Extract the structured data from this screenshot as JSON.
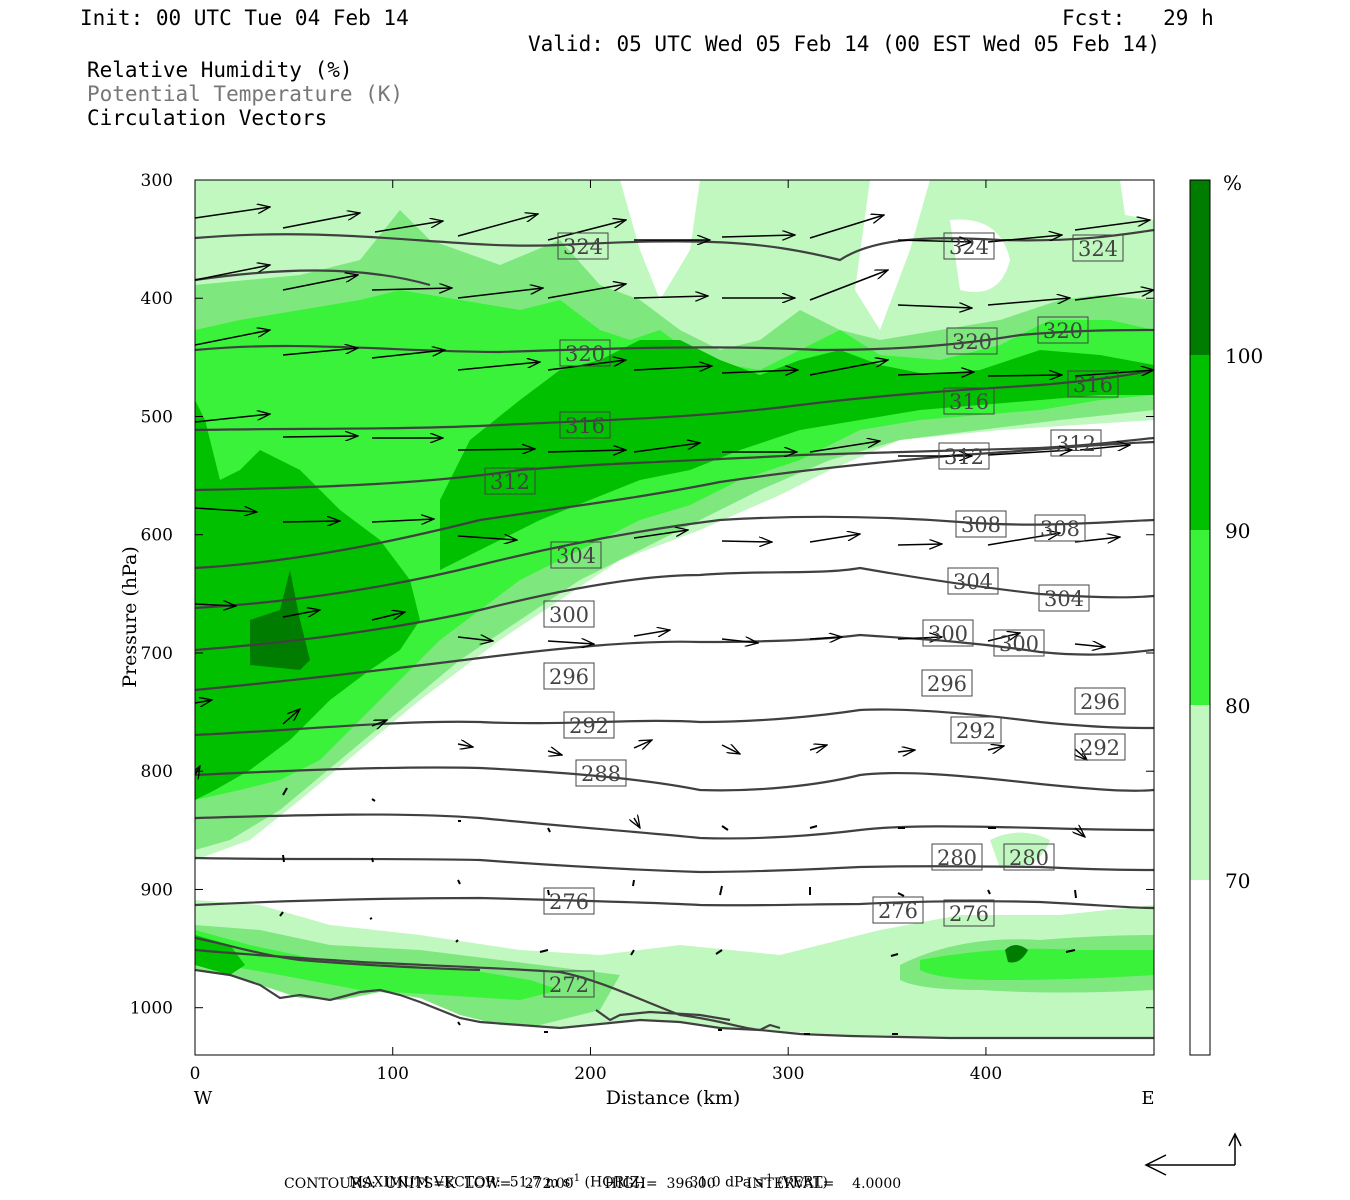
{
  "header": {
    "init": "Init: 00 UTC Tue 04 Feb 14",
    "fcst": "Fcst:   29 h",
    "valid": "Valid: 05 UTC Wed 05 Feb 14 (00 EST Wed 05 Feb 14)",
    "fields": [
      "Relative Humidity (%)",
      "Potential Temperature (K)",
      "Circulation Vectors"
    ]
  },
  "footer": {
    "max_vector_label": "MAXIMUM VECTOR:",
    "horiz": "51.7 m s",
    "horiz_sup": "-1",
    "horiz_unit": " (HORIZ)",
    "vert": "31.0 dPa s",
    "vert_sup": "-1",
    "vert_unit": " (VERT)",
    "contours": "CONTOURS:  UNITS=K  LOW=   272.00       HIGH=  396.00       INTERVAL=    4.0000"
  },
  "colors": {
    "rh_70_80": "#c0f8c0",
    "rh_80_90": "#7ee87e",
    "rh_90_100": "#39f239",
    "rh_100": "#00c000",
    "rh_max": "#007c00",
    "theta": "#404040"
  },
  "chart_data": {
    "type": "contour",
    "xlabel": "Distance (km)",
    "ylabel": "Pressure (hPa)",
    "x_ticks": [
      0,
      100,
      200,
      300,
      400
    ],
    "y_ticks": [
      300,
      400,
      500,
      600,
      700,
      800,
      900,
      1000
    ],
    "xlim": [
      0,
      485
    ],
    "ylim": [
      1040,
      300
    ],
    "x_end_labels": {
      "left": "W",
      "right": "E"
    },
    "colorbar": {
      "unit": "%",
      "levels": [
        70,
        80,
        90,
        100
      ],
      "colors": [
        "#ffffff",
        "#c0f8c0",
        "#39f239",
        "#00c000",
        "#007c00"
      ]
    },
    "theta_contours": [
      {
        "value": 324,
        "labels": [
          "324",
          "324",
          "324"
        ]
      },
      {
        "value": 320,
        "labels": [
          "320",
          "320",
          "320"
        ]
      },
      {
        "value": 316,
        "labels": [
          "316",
          "316",
          "316"
        ]
      },
      {
        "value": 312,
        "labels": [
          "312",
          "312",
          "312"
        ]
      },
      {
        "value": 308,
        "labels": [
          "308",
          "308"
        ]
      },
      {
        "value": 304,
        "labels": [
          "304",
          "304",
          "304"
        ]
      },
      {
        "value": 300,
        "labels": [
          "300",
          "300",
          "300"
        ]
      },
      {
        "value": 296,
        "labels": [
          "296",
          "296",
          "296"
        ]
      },
      {
        "value": 292,
        "labels": [
          "292",
          "292",
          "292"
        ]
      },
      {
        "value": 288,
        "labels": [
          "288"
        ]
      },
      {
        "value": 280,
        "labels": [
          "280",
          "280"
        ]
      },
      {
        "value": 276,
        "labels": [
          "276",
          "276",
          "276"
        ]
      },
      {
        "value": 272,
        "labels": [
          "272"
        ]
      }
    ]
  }
}
